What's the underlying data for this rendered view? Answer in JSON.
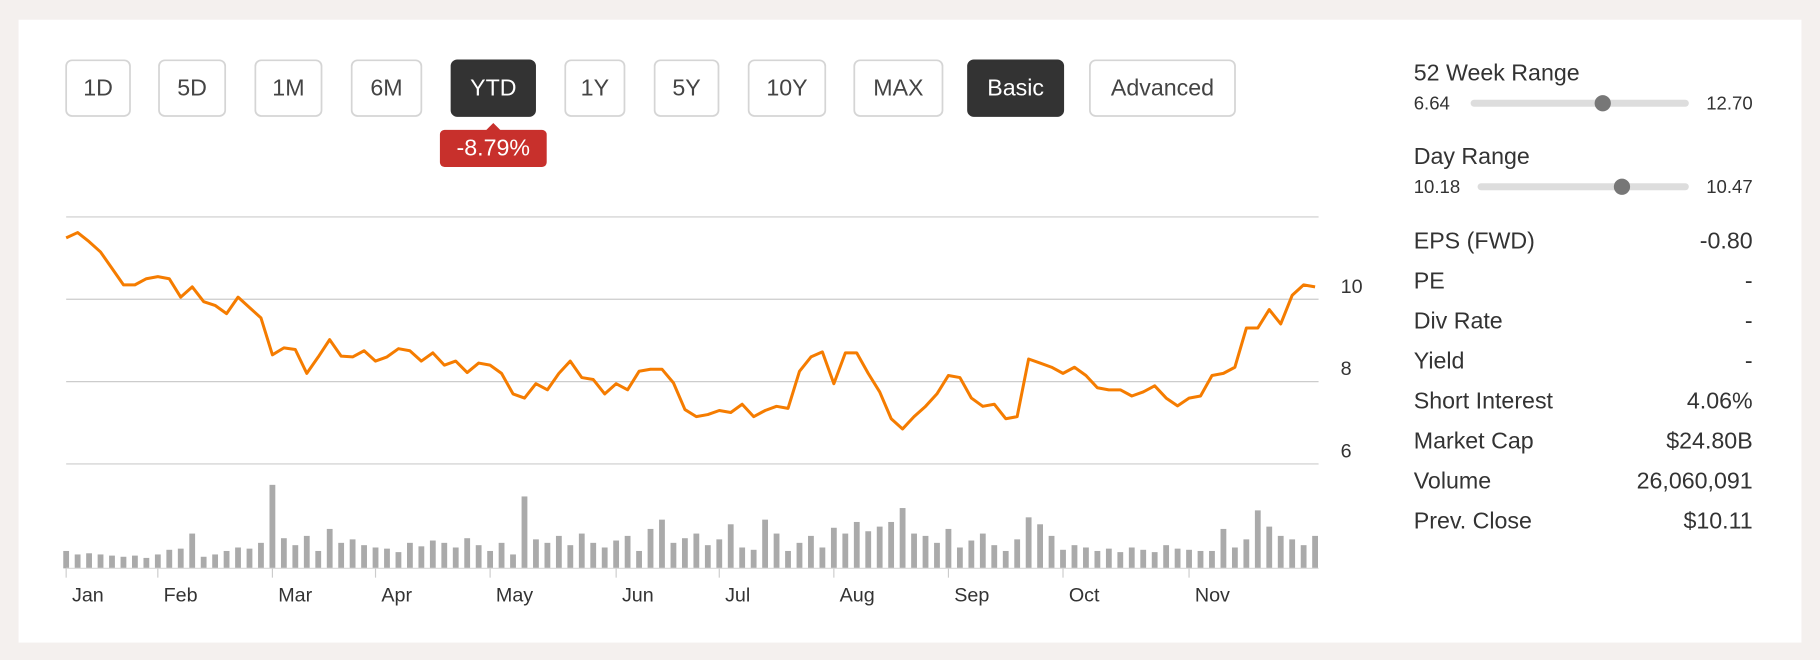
{
  "buttons": [
    "1D",
    "5D",
    "1M",
    "6M",
    "YTD",
    "1Y",
    "5Y",
    "10Y",
    "MAX"
  ],
  "active_button": 4,
  "modes": [
    "Basic",
    "Advanced"
  ],
  "active_mode": 0,
  "change_badge": "-8.79%",
  "ranges": [
    {
      "label": "52 Week Range",
      "low": "6.64",
      "high": "12.70",
      "current": 10.33
    },
    {
      "label": "Day Range",
      "low": "10.18",
      "high": "10.47",
      "current": 10.38
    }
  ],
  "stats": [
    {
      "label": "EPS (FWD)",
      "value": "-0.80"
    },
    {
      "label": "PE",
      "value": "-"
    },
    {
      "label": "Div Rate",
      "value": "-"
    },
    {
      "label": "Yield",
      "value": "-"
    },
    {
      "label": "Short Interest",
      "value": "4.06%"
    },
    {
      "label": "Market Cap",
      "value": "$24.80B"
    },
    {
      "label": "Volume",
      "value": "26,060,091"
    },
    {
      "label": "Prev. Close",
      "value": "$10.11"
    }
  ],
  "chart_data": [
    {
      "type": "line",
      "color": "#f57c00",
      "ylim": [
        6,
        12
      ],
      "yticks": [
        6,
        8,
        10
      ],
      "grid": true,
      "categories": [
        "Jan",
        null,
        null,
        null,
        null,
        null,
        null,
        null,
        "Feb",
        null,
        null,
        null,
        null,
        null,
        null,
        null,
        null,
        null,
        "Mar",
        null,
        null,
        null,
        null,
        null,
        null,
        null,
        null,
        "Apr",
        null,
        null,
        null,
        null,
        null,
        null,
        null,
        null,
        null,
        "May",
        null,
        null,
        null,
        null,
        null,
        null,
        null,
        null,
        null,
        null,
        "Jun",
        null,
        null,
        null,
        null,
        null,
        null,
        null,
        null,
        "Jul",
        null,
        null,
        null,
        null,
        null,
        null,
        null,
        null,
        null,
        "Aug",
        null,
        null,
        null,
        null,
        null,
        null,
        null,
        null,
        null,
        "Sep",
        null,
        null,
        null,
        null,
        null,
        null,
        null,
        null,
        null,
        "Oct",
        null,
        null,
        null,
        null,
        null,
        null,
        null,
        null,
        null,
        null,
        "Nov",
        null,
        null,
        null,
        null,
        null,
        null,
        null,
        null,
        null,
        null,
        null
      ],
      "values": [
        11.49,
        11.62,
        11.4,
        11.15,
        10.75,
        10.35,
        10.35,
        10.5,
        10.55,
        10.5,
        10.05,
        10.3,
        9.94,
        9.85,
        9.65,
        10.05,
        9.8,
        9.55,
        8.65,
        8.82,
        8.78,
        8.2,
        8.6,
        9.02,
        8.62,
        8.6,
        8.75,
        8.5,
        8.6,
        8.8,
        8.75,
        8.5,
        8.7,
        8.4,
        8.5,
        8.22,
        8.45,
        8.4,
        8.2,
        7.7,
        7.6,
        7.95,
        7.8,
        8.2,
        8.5,
        8.1,
        8.05,
        7.7,
        7.95,
        7.8,
        8.25,
        8.3,
        8.3,
        7.97,
        7.32,
        7.15,
        7.2,
        7.3,
        7.25,
        7.45,
        7.15,
        7.3,
        7.4,
        7.35,
        8.25,
        8.6,
        8.72,
        7.95,
        8.7,
        8.7,
        8.2,
        7.75,
        7.1,
        6.85,
        7.15,
        7.4,
        7.7,
        8.15,
        8.1,
        7.6,
        7.4,
        7.45,
        7.1,
        7.15,
        8.55,
        8.45,
        8.35,
        8.2,
        8.35,
        8.15,
        7.85,
        7.8,
        7.8,
        7.65,
        7.75,
        7.9,
        7.6,
        7.41,
        7.6,
        7.65,
        8.15,
        8.2,
        8.35,
        9.3,
        9.3,
        9.75,
        9.4,
        10.1,
        10.35,
        10.3
      ]
    },
    {
      "type": "bar",
      "color": "#aaaaaa",
      "ylim": [
        0,
        80
      ],
      "values": [
        15,
        12,
        13,
        12,
        11,
        10,
        11,
        9,
        12,
        16,
        17,
        30,
        10,
        12,
        15,
        18,
        17,
        22,
        72,
        26,
        20,
        28,
        15,
        34,
        22,
        25,
        20,
        18,
        17,
        14,
        22,
        19,
        24,
        22,
        18,
        26,
        20,
        15,
        22,
        12,
        62,
        25,
        22,
        28,
        20,
        30,
        22,
        18,
        24,
        28,
        15,
        34,
        42,
        22,
        26,
        30,
        20,
        25,
        38,
        18,
        16,
        42,
        30,
        15,
        22,
        28,
        18,
        35,
        30,
        40,
        32,
        36,
        40,
        52,
        30,
        28,
        22,
        34,
        18,
        24,
        30,
        20,
        15,
        25,
        44,
        38,
        28,
        16,
        20,
        18,
        15,
        17,
        14,
        18,
        16,
        14,
        20,
        17,
        16,
        15,
        15,
        34,
        18,
        25,
        50,
        36,
        28,
        25,
        20,
        28
      ]
    }
  ]
}
